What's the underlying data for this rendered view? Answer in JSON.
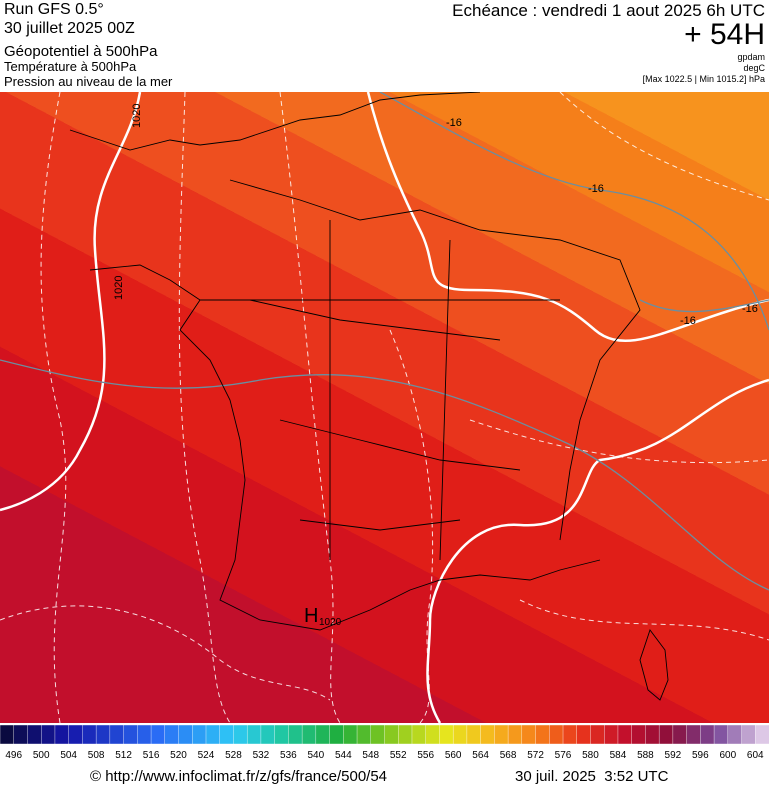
{
  "header": {
    "run": "Run GFS 0.5°",
    "date": "30 juillet 2025 00Z",
    "field": "Géopotentiel à 500hPa",
    "field2": "Température à 500hPa",
    "field3": "Pression au niveau de la mer",
    "valid": "Echéance : vendredi 1 aout 2025 6h UTC",
    "lead": "+ 54H",
    "unit1": "gpdam",
    "unit2": "degC",
    "range": "[Max 1022.5 | Min 1015.2] hPa"
  },
  "map_labels": {
    "isobar1": "1020",
    "isobar2": "1020",
    "temp1": "-16",
    "temp2": "-16",
    "temp3": "-16",
    "temp4": "-16",
    "high": "H",
    "high_value": "1020"
  },
  "legend": {
    "labels": [
      496,
      500,
      504,
      508,
      512,
      516,
      520,
      524,
      528,
      532,
      536,
      540,
      544,
      548,
      552,
      556,
      560,
      564,
      568,
      572,
      576,
      580,
      584,
      588,
      592,
      596,
      600,
      604
    ]
  },
  "footer": {
    "source": "© http://www.infoclimat.fr/z/gfs/france/500/54",
    "timestamp": "30 juil. 2025  3:52 UTC"
  }
}
